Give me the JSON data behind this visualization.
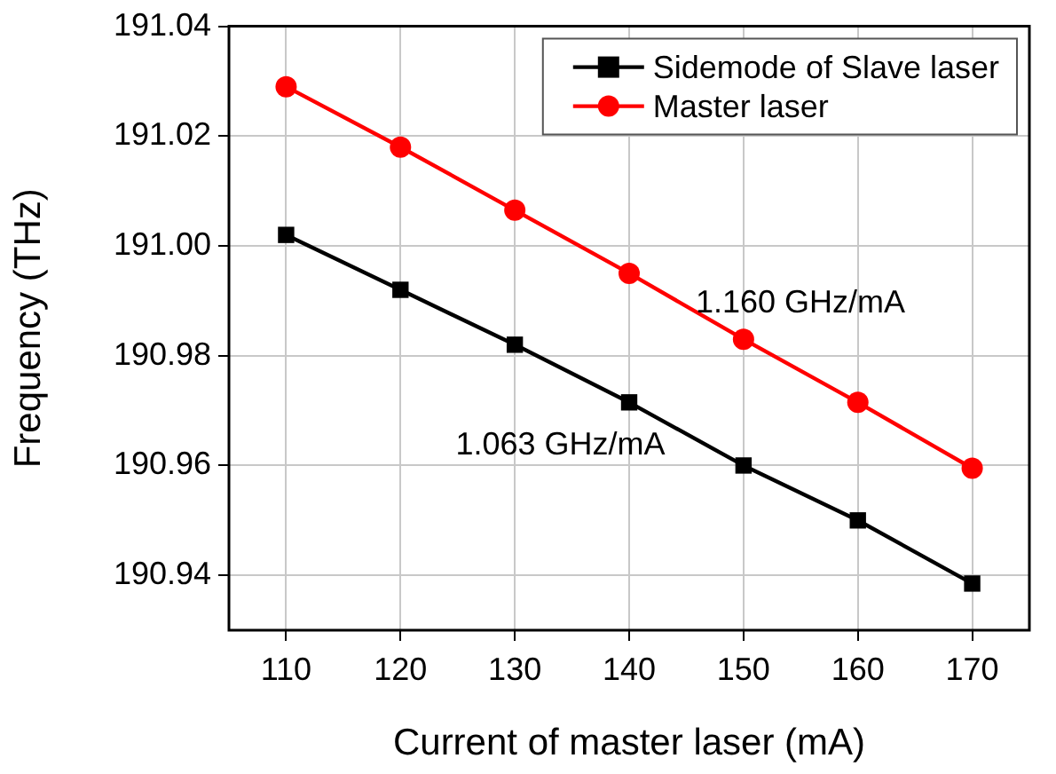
{
  "chart_data": {
    "type": "line",
    "xlabel": "Current of master laser (mA)",
    "ylabel": "Frequency (THz)",
    "x": [
      110,
      120,
      130,
      140,
      150,
      160,
      170
    ],
    "series": [
      {
        "name": "Sidemode of Slave laser",
        "color": "#000000",
        "marker": "square",
        "values": [
          191.002,
          190.992,
          190.982,
          190.9715,
          190.96,
          190.95,
          190.9385
        ]
      },
      {
        "name": "Master laser",
        "color": "#ff0000",
        "marker": "circle",
        "values": [
          191.029,
          191.018,
          191.0065,
          190.995,
          190.983,
          190.9715,
          190.9595
        ]
      }
    ],
    "xlim": [
      105,
      175
    ],
    "xticks": [
      110,
      120,
      130,
      140,
      150,
      160,
      170
    ],
    "ylim": [
      190.93,
      191.04
    ],
    "yticks": [
      190.94,
      190.96,
      190.98,
      {
        "value": 191,
        "label": "191.00"
      },
      191.02,
      191.04
    ],
    "annotations": [
      "1.160 GHz/mA",
      "1.063 GHz/mA"
    ],
    "grid": true,
    "legend": "top right",
    "line_style": "solid"
  }
}
